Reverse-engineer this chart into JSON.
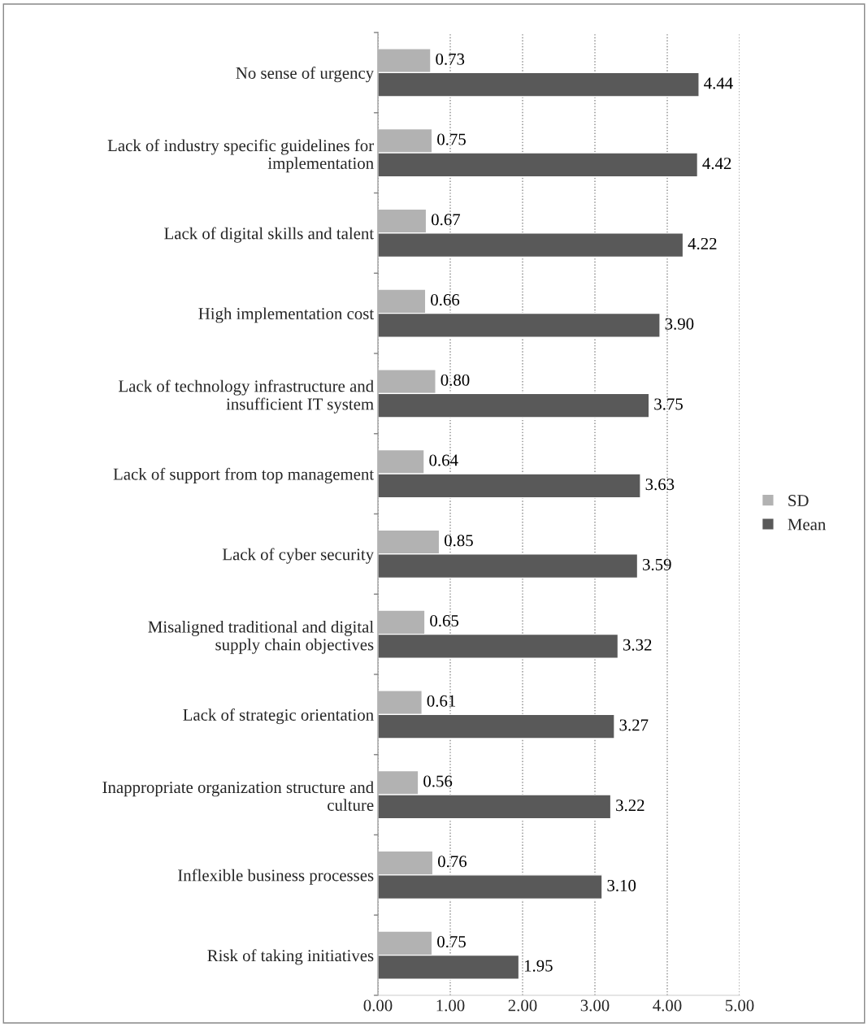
{
  "chart_data": {
    "type": "bar",
    "orientation": "horizontal",
    "categories": [
      "No sense of urgency",
      "Lack of industry specific guidelines for implementation",
      "Lack of digital skills and talent",
      "High implementation cost",
      "Lack of technology infrastructure and insufficient IT system",
      "Lack of support from top management",
      "Lack of cyber security",
      "Misaligned traditional and digital supply chain objectives",
      "Lack of strategic orientation",
      "Inappropriate organization structure and culture",
      "Inflexible business processes",
      "Risk of taking initiatives"
    ],
    "series": [
      {
        "name": "SD",
        "color": "#b2b2b2",
        "values": [
          0.73,
          0.75,
          0.67,
          0.66,
          0.8,
          0.64,
          0.85,
          0.65,
          0.61,
          0.56,
          0.76,
          0.75
        ],
        "value_labels": [
          "0.73",
          "0.75",
          "0.67",
          "0.66",
          "0.80",
          "0.64",
          "0.85",
          "0.65",
          "0.61",
          "0.56",
          "0.76",
          "0.75"
        ]
      },
      {
        "name": "Mean",
        "color": "#595959",
        "values": [
          4.44,
          4.42,
          4.22,
          3.9,
          3.75,
          3.63,
          3.59,
          3.32,
          3.27,
          3.22,
          3.1,
          1.95
        ],
        "value_labels": [
          "4.44",
          "4.42",
          "4.22",
          "3.90",
          "3.75",
          "3.63",
          "3.59",
          "3.32",
          "3.27",
          "3.22",
          "3.10",
          "1.95"
        ]
      }
    ],
    "xlim": [
      0,
      5
    ],
    "xticks": [
      {
        "value": 0,
        "label": "0.00"
      },
      {
        "value": 1,
        "label": "1.00"
      },
      {
        "value": 2,
        "label": "2.00"
      },
      {
        "value": 3,
        "label": "3.00"
      },
      {
        "value": 4,
        "label": "4.00"
      },
      {
        "value": 5,
        "label": "5.00"
      }
    ],
    "grid": "x",
    "line_style": "dotted",
    "legend": "right"
  }
}
